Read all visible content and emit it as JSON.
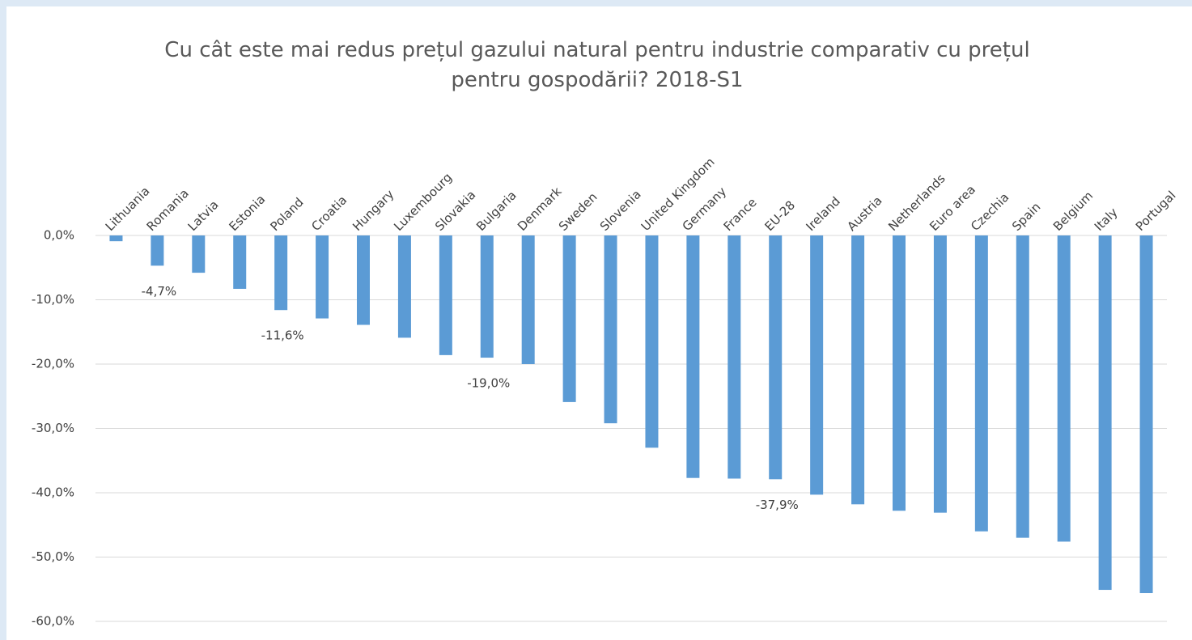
{
  "chart_data": {
    "type": "bar",
    "title": "Cu cât este mai redus prețul gazului natural pentru industrie comparativ cu prețul pentru gospodării? 2018-S1",
    "categories": [
      "Lithuania",
      "Romania",
      "Latvia",
      "Estonia",
      "Poland",
      "Croatia",
      "Hungary",
      "Luxembourg",
      "Slovakia",
      "Bulgaria",
      "Denmark",
      "Sweden",
      "Slovenia",
      "United Kingdom",
      "Germany",
      "France",
      "EU-28",
      "Ireland",
      "Austria",
      "Netherlands",
      "Euro area",
      "Czechia",
      "Spain",
      "Belgium",
      "Italy",
      "Portugal"
    ],
    "values": [
      -0.9,
      -4.7,
      -5.8,
      -8.3,
      -11.6,
      -12.9,
      -13.9,
      -15.9,
      -18.6,
      -19.0,
      -20.0,
      -25.9,
      -29.2,
      -33.0,
      -37.7,
      -37.8,
      -37.9,
      -40.3,
      -41.8,
      -42.8,
      -43.1,
      -46.0,
      -47.0,
      -47.6,
      -55.1,
      -55.6
    ],
    "value_labels": [
      null,
      "-4,7%",
      null,
      null,
      "-11,6%",
      null,
      null,
      null,
      null,
      "-19,0%",
      null,
      null,
      null,
      null,
      null,
      null,
      "-37,9%",
      null,
      null,
      null,
      null,
      null,
      null,
      null,
      null,
      null
    ],
    "color": "#5b9bd5",
    "ylim": [
      -60,
      0
    ],
    "yticks": [
      {
        "value": 0,
        "label": "0,0%"
      },
      {
        "value": -10,
        "label": "-10,0%"
      },
      {
        "value": -20,
        "label": "-20,0%"
      },
      {
        "value": -30,
        "label": "-30,0%"
      },
      {
        "value": -40,
        "label": "-40,0%"
      },
      {
        "value": -50,
        "label": "-50,0%"
      },
      {
        "value": -60,
        "label": "-60,0%"
      }
    ],
    "grid": true
  }
}
